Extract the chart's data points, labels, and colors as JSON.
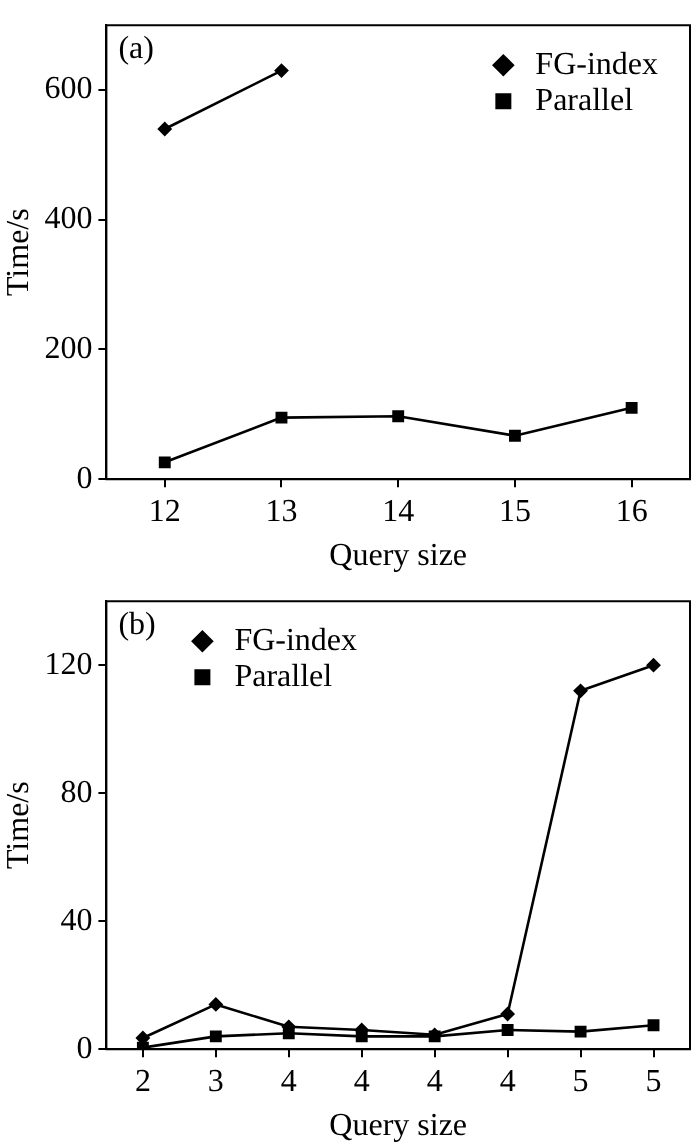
{
  "chart_data": [
    {
      "type": "line",
      "categories": [
        "12",
        "13",
        "14",
        "15",
        "16"
      ],
      "xlabel": "Query size",
      "ylabel": "Time/s",
      "ylim": [
        0,
        700
      ],
      "yticks": [
        0,
        200,
        400,
        600
      ],
      "grid": false,
      "legend": "top right",
      "annotations": [
        "(a)"
      ],
      "series": [
        {
          "name": "FG-index",
          "color": "#000000",
          "marker": "diamond",
          "values": [
            540,
            630,
            null,
            null,
            null
          ]
        },
        {
          "name": "Parallel",
          "color": "#000000",
          "marker": "square",
          "values": [
            26,
            95,
            97,
            67,
            110
          ]
        }
      ]
    },
    {
      "type": "line",
      "categories": [
        "2",
        "3",
        "4",
        "4",
        "4",
        "4",
        "5",
        "5"
      ],
      "xlabel": "Query size",
      "ylabel": "Time/s",
      "ylim": [
        0,
        140
      ],
      "yticks": [
        0,
        40,
        80,
        120
      ],
      "grid": false,
      "legend": "top left",
      "annotations": [
        "(b)"
      ],
      "series": [
        {
          "name": "FG-index",
          "color": "#000000",
          "marker": "diamond",
          "values": [
            3.5,
            14,
            7,
            6,
            4.5,
            11,
            112,
            120
          ]
        },
        {
          "name": "Parallel",
          "color": "#000000",
          "marker": "square",
          "values": [
            0.5,
            4,
            5,
            4,
            4,
            6,
            5.5,
            7.5
          ]
        }
      ]
    }
  ]
}
